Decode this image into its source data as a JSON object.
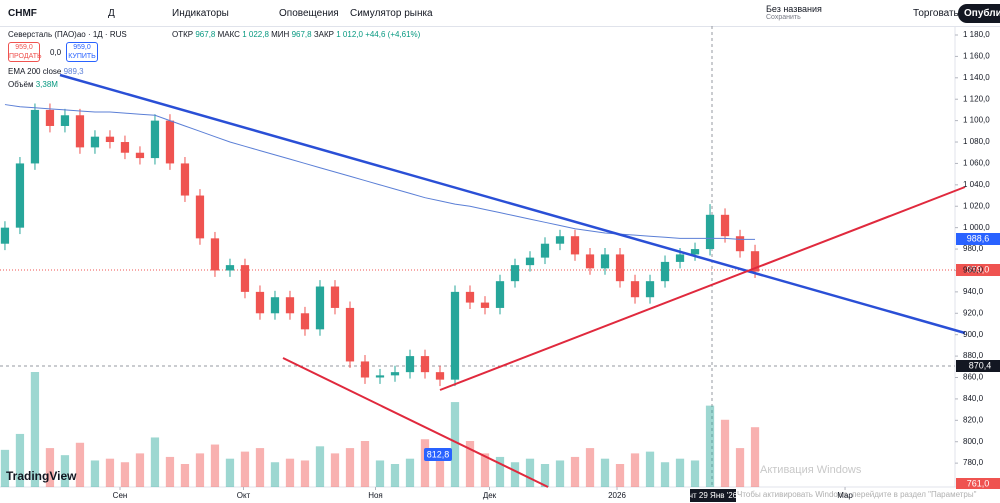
{
  "toolbar": {
    "symbol": "CHMF",
    "interval": "Д",
    "indicators": "Индикаторы",
    "alerts": "Оповещения",
    "replay": "Симулятор рынка",
    "layout_name": "Без названия",
    "saved": "Сохранить",
    "trade": "Торговать",
    "publish": "Опубликов"
  },
  "legend": {
    "instrument": "Северсталь (ПАО)ао · 1Д · RUS",
    "open_label": "ОТКР",
    "open": "967,8",
    "high_label": "МАКС",
    "high": "1 022,8",
    "low_label": "МИН",
    "low": "967,8",
    "close_label": "ЗАКР",
    "close": "1 012,0",
    "change": "+44,6 (+4,61%)",
    "sell_price": "959,0",
    "sell": "ПРОДАТЬ",
    "spread": "0,0",
    "buy_price": "959,0",
    "buy": "КУПИТЬ",
    "ema_name": "EMA 200 close",
    "ema_value": "989,3",
    "volume_name": "Объём",
    "volume_value": "3,38M"
  },
  "price_labels": {
    "ema": "988,6",
    "last": "959,0",
    "crosshair": "870,4",
    "low_marker": "761,0",
    "tooltip": "812,8",
    "date": "чт 29 Янв '26"
  },
  "watermark": {
    "title": "Активация Windows",
    "text": "Чтобы активировать Windows, перейдите в раздел \"Параметры\""
  },
  "chart_data": {
    "type": "candlestick",
    "xlim": [
      -0.33,
      63.33
    ],
    "ylim": [
      757.7,
      1188.4
    ],
    "xticks": [
      {
        "value": 7.67,
        "label": "Сен"
      },
      {
        "value": 15.9,
        "label": "Окт"
      },
      {
        "value": 24.7,
        "label": "Ноя"
      },
      {
        "value": 32.3,
        "label": "Дек"
      },
      {
        "value": 40.8,
        "label": "2026"
      },
      {
        "value": 56,
        "label": "Мар"
      }
    ],
    "yticks": [
      {
        "value": 780,
        "label": "780,0"
      },
      {
        "value": 800,
        "label": "800,0"
      },
      {
        "value": 820,
        "label": "820,0"
      },
      {
        "value": 840,
        "label": "840,0"
      },
      {
        "value": 860,
        "label": "860,0"
      },
      {
        "value": 880,
        "label": "880,0"
      },
      {
        "value": 900,
        "label": "900,0"
      },
      {
        "value": 920,
        "label": "920,0"
      },
      {
        "value": 940,
        "label": "940,0"
      },
      {
        "value": 960,
        "label": "960,0"
      },
      {
        "value": 980,
        "label": "980,0"
      },
      {
        "value": 1000,
        "label": "1 000,0"
      },
      {
        "value": 1020,
        "label": "1 020,0"
      },
      {
        "value": 1040,
        "label": "1 040,0"
      },
      {
        "value": 1060,
        "label": "1 060,0"
      },
      {
        "value": 1080,
        "label": "1 080,0"
      },
      {
        "value": 1100,
        "label": "1 100,0"
      },
      {
        "value": 1120,
        "label": "1 120,0"
      },
      {
        "value": 1140,
        "label": "1 140,0"
      },
      {
        "value": 1160,
        "label": "1 160,0"
      },
      {
        "value": 1180,
        "label": "1 180,0"
      }
    ],
    "up_color": "#26a69a",
    "down_color": "#ef5350",
    "open": [
      985,
      1000,
      1060,
      1110,
      1095,
      1105,
      1075,
      1085,
      1080,
      1070,
      1065,
      1100,
      1060,
      1030,
      990,
      960,
      965,
      940,
      920,
      935,
      920,
      905,
      945,
      925,
      875,
      860,
      862,
      865,
      880,
      865,
      858,
      940,
      930,
      925,
      950,
      965,
      972,
      985,
      992,
      975,
      962,
      975,
      950,
      935,
      950,
      968,
      975,
      980,
      1012,
      992,
      978
    ],
    "close": [
      1000,
      1060,
      1110,
      1095,
      1105,
      1075,
      1085,
      1080,
      1070,
      1065,
      1100,
      1060,
      1030,
      990,
      960,
      965,
      940,
      920,
      935,
      920,
      905,
      945,
      925,
      875,
      860,
      862,
      865,
      880,
      865,
      858,
      940,
      930,
      925,
      950,
      965,
      972,
      985,
      992,
      975,
      962,
      975,
      950,
      935,
      950,
      968,
      975,
      980,
      1012,
      992,
      978,
      959
    ],
    "high": [
      1006,
      1066,
      1116,
      1116,
      1111,
      1111,
      1091,
      1091,
      1086,
      1076,
      1106,
      1106,
      1066,
      1036,
      996,
      971,
      971,
      946,
      941,
      941,
      926,
      951,
      951,
      931,
      881,
      868,
      871,
      886,
      886,
      871,
      946,
      946,
      936,
      956,
      971,
      978,
      991,
      998,
      998,
      981,
      981,
      981,
      956,
      956,
      974,
      981,
      986,
      1022,
      1018,
      998,
      984
    ],
    "low": [
      979,
      994,
      1054,
      1089,
      1089,
      1069,
      1069,
      1074,
      1064,
      1059,
      1059,
      1054,
      1024,
      984,
      954,
      954,
      934,
      914,
      914,
      914,
      899,
      899,
      919,
      869,
      854,
      854,
      856,
      859,
      859,
      852,
      852,
      924,
      919,
      919,
      944,
      959,
      966,
      979,
      969,
      956,
      956,
      944,
      929,
      929,
      944,
      962,
      969,
      974,
      986,
      972,
      953
    ],
    "volume": [
      2.1,
      3.0,
      6.5,
      2.2,
      1.8,
      2.5,
      1.5,
      1.6,
      1.4,
      1.9,
      2.8,
      1.7,
      1.3,
      1.9,
      2.4,
      1.6,
      2.0,
      2.2,
      1.4,
      1.6,
      1.5,
      2.3,
      1.9,
      2.2,
      2.6,
      1.5,
      1.3,
      1.6,
      2.7,
      1.8,
      4.8,
      2.6,
      1.9,
      1.7,
      1.4,
      1.6,
      1.3,
      1.5,
      1.7,
      2.2,
      1.6,
      1.3,
      1.9,
      2.0,
      1.4,
      1.6,
      1.5,
      4.6,
      3.8,
      2.2,
      3.38
    ],
    "ema": {
      "color": "#5b7fd6",
      "values": [
        1115,
        1113,
        1112,
        1111,
        1110,
        1109,
        1108,
        1108,
        1107,
        1106,
        1105,
        1100,
        1095,
        1090,
        1085,
        1080,
        1076,
        1072,
        1068,
        1064,
        1060,
        1056,
        1052,
        1048,
        1044,
        1040,
        1036,
        1032,
        1028,
        1025,
        1022,
        1020,
        1017,
        1014,
        1011,
        1008,
        1005,
        1002,
        999,
        997,
        995,
        994,
        993,
        992,
        991,
        990,
        990,
        990,
        990,
        989,
        989
      ]
    }
  }
}
